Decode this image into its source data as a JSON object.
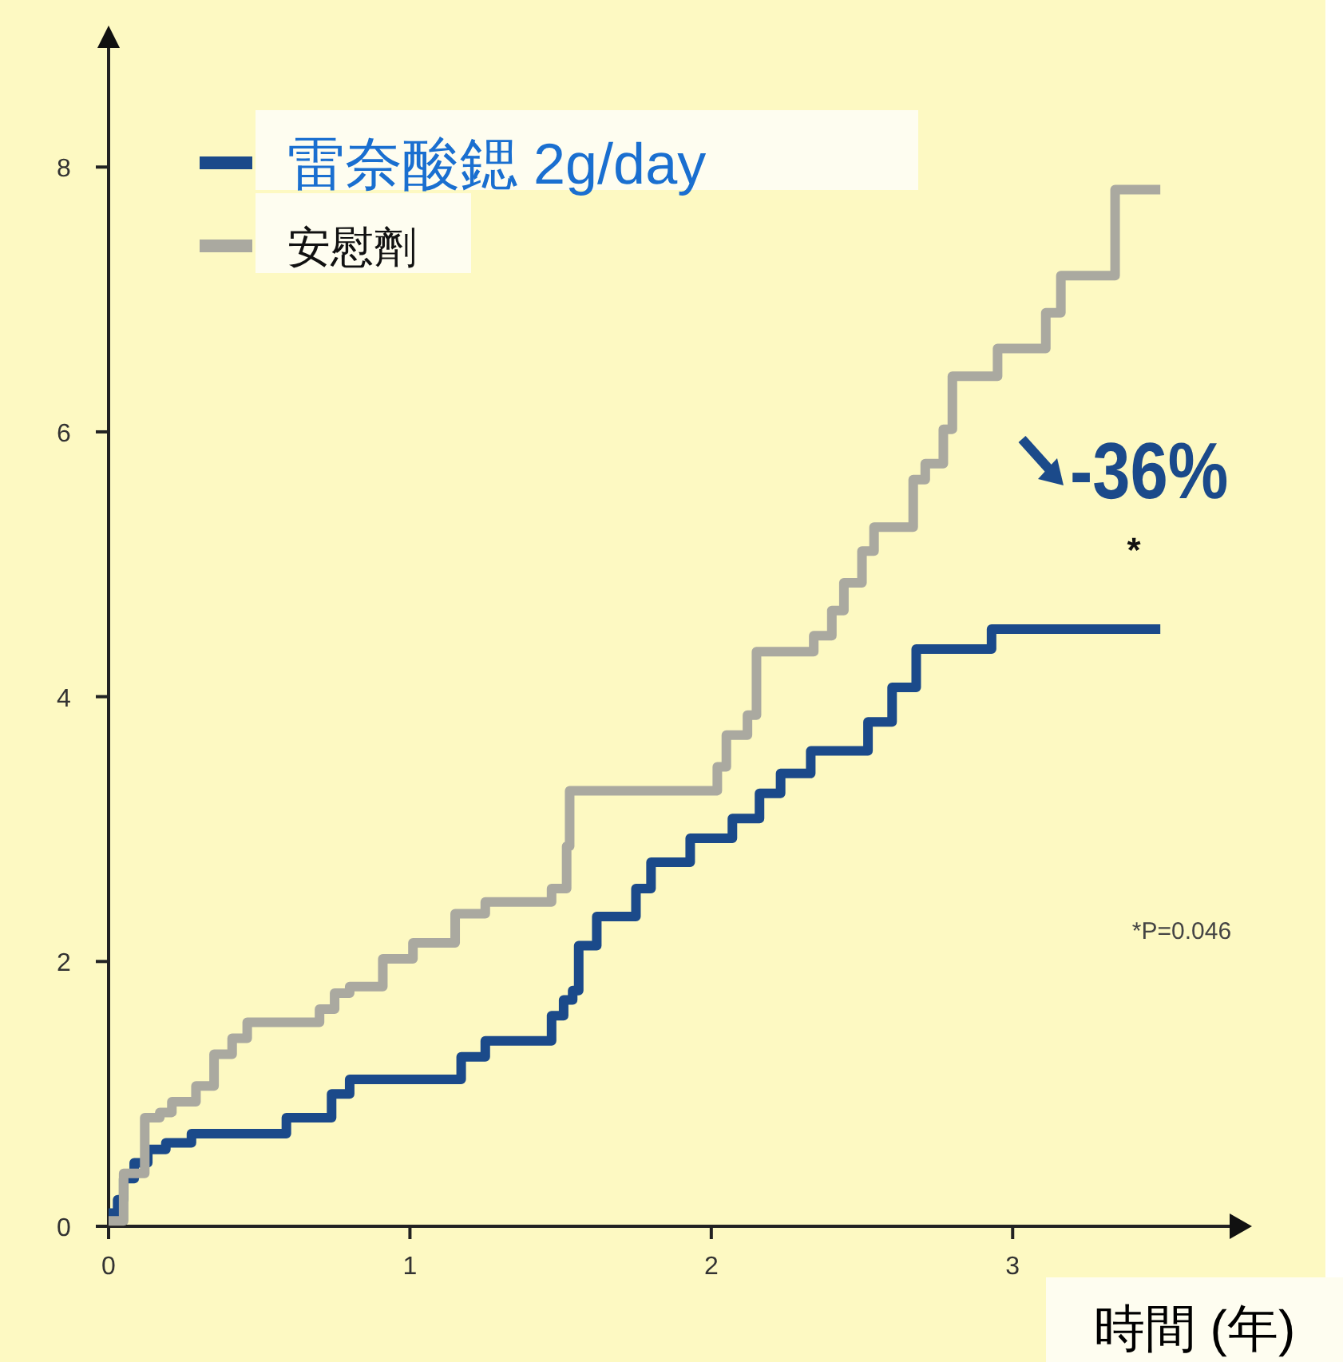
{
  "chart_data": {
    "type": "step",
    "xlabel": "時間 (年)",
    "xlim": [
      0,
      3.72
    ],
    "xticks": [
      0,
      1,
      2,
      3
    ],
    "ylim": [
      0,
      8.9
    ],
    "yticks": [
      0,
      2,
      4,
      6,
      8
    ],
    "grid": false,
    "legend": "top left",
    "line_style": "solid",
    "marker": "none",
    "series": [
      {
        "name": "雷奈酸鍶 2g/day",
        "color": "#1b4a8a",
        "x": [
          0,
          0.03,
          0.05,
          0.085,
          0.13,
          0.19,
          0.275,
          0.59,
          0.74,
          0.8,
          1.17,
          1.25,
          1.47,
          1.51,
          1.54,
          1.56,
          1.62,
          1.75,
          1.8,
          1.93,
          2.07,
          2.16,
          2.23,
          2.33,
          2.52,
          2.6,
          2.68,
          2.93,
          3.49
        ],
        "values": [
          0.1,
          0.2,
          0.36,
          0.48,
          0.58,
          0.63,
          0.7,
          0.82,
          1.0,
          1.11,
          1.28,
          1.4,
          1.59,
          1.71,
          1.78,
          2.12,
          2.34,
          2.55,
          2.75,
          2.93,
          3.08,
          3.27,
          3.42,
          3.59,
          3.81,
          4.07,
          4.36,
          4.51,
          4.51
        ]
      },
      {
        "name": "安慰劑",
        "color": "#aaa9a0",
        "x": [
          0,
          0.05,
          0.12,
          0.17,
          0.21,
          0.29,
          0.35,
          0.41,
          0.46,
          0.7,
          0.75,
          0.8,
          0.91,
          1.01,
          1.15,
          1.25,
          1.47,
          1.52,
          1.53,
          2.02,
          2.05,
          2.12,
          2.15,
          2.34,
          2.4,
          2.44,
          2.5,
          2.54,
          2.67,
          2.71,
          2.77,
          2.8,
          2.95,
          3.11,
          3.16,
          3.34,
          3.49
        ],
        "values": [
          0.04,
          0.4,
          0.82,
          0.86,
          0.94,
          1.06,
          1.3,
          1.42,
          1.54,
          1.64,
          1.76,
          1.81,
          2.02,
          2.14,
          2.36,
          2.45,
          2.55,
          2.87,
          3.29,
          3.47,
          3.71,
          3.86,
          4.34,
          4.46,
          4.65,
          4.86,
          5.1,
          5.28,
          5.64,
          5.76,
          6.02,
          6.42,
          6.63,
          6.9,
          7.18,
          7.83,
          7.83
        ]
      }
    ],
    "annotations": [
      "-36%",
      "*",
      "*P=0.046"
    ]
  }
}
